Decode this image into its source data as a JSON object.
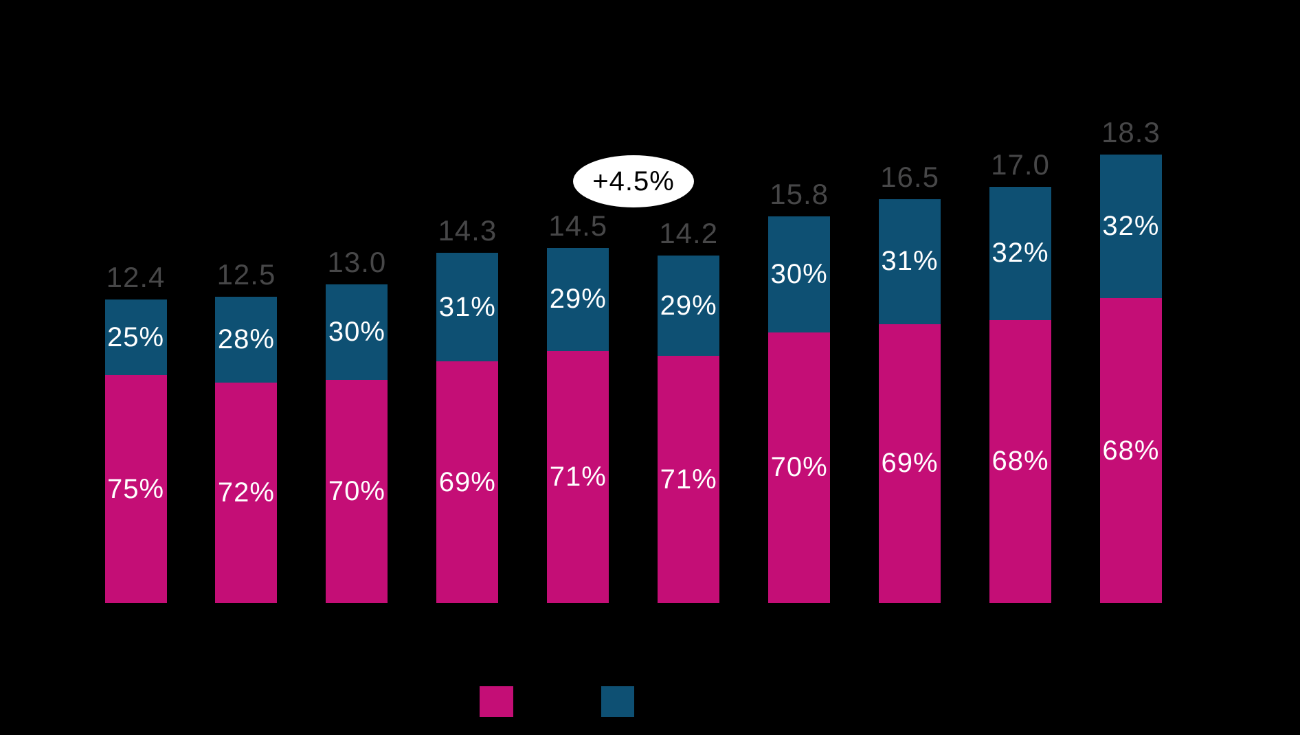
{
  "chart_data": {
    "type": "bar",
    "stacked": true,
    "orientation": "vertical",
    "bar_count": 10,
    "totals": [
      12.4,
      12.5,
      13.0,
      14.3,
      14.5,
      14.2,
      15.8,
      16.5,
      17.0,
      18.3
    ],
    "total_labels": [
      "12.4",
      "12.5",
      "13.0",
      "14.3",
      "14.5",
      "14.2",
      "15.8",
      "16.5",
      "17.0",
      "18.3"
    ],
    "series": [
      {
        "name": "bottom-segment",
        "color": "#c40e76",
        "pct_values": [
          75,
          72,
          70,
          69,
          71,
          71,
          70,
          69,
          68,
          68
        ],
        "pct_labels": [
          "75%",
          "72%",
          "70%",
          "69%",
          "71%",
          "71%",
          "70%",
          "69%",
          "68%",
          "68%"
        ]
      },
      {
        "name": "top-segment",
        "color": "#0e5073",
        "pct_values": [
          25,
          28,
          30,
          31,
          29,
          29,
          30,
          31,
          32,
          32
        ],
        "pct_labels": [
          "25%",
          "28%",
          "30%",
          "31%",
          "29%",
          "29%",
          "30%",
          "31%",
          "32%",
          "32%"
        ]
      }
    ],
    "annotation": {
      "label": "+4.5%"
    },
    "legend": {
      "swatch_colors": [
        "#c40e76",
        "#0e5073"
      ],
      "labels_visible": false
    },
    "axes": {
      "x_tick_labels_visible": false,
      "y_axis_visible": false,
      "gridlines": false
    },
    "title_visible": false,
    "style": {
      "background": "#000000",
      "total_label_color": "#474748",
      "segment_label_color": "#ffffff",
      "annotation_bg": "#ffffff",
      "annotation_text_color": "#000000"
    }
  }
}
